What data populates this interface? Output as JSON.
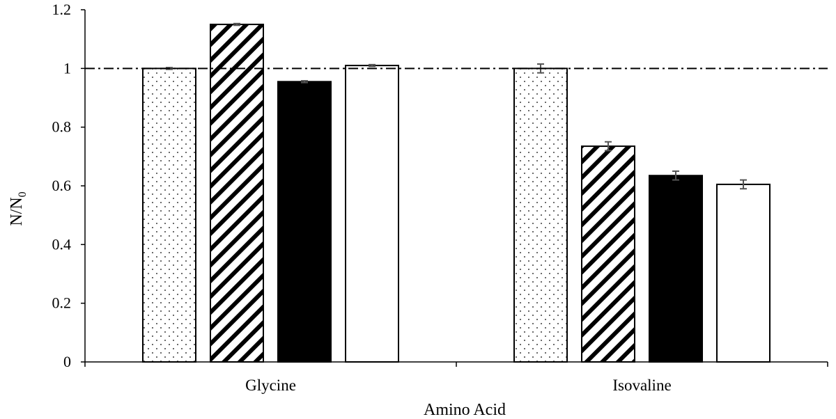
{
  "chart_data": {
    "type": "bar",
    "title": "",
    "xlabel": "Amino Acid",
    "ylabel": {
      "main": "N/N",
      "subscript": "0"
    },
    "ylim": [
      0,
      1.2
    ],
    "yticks": [
      "0",
      "0.2",
      "0.4",
      "0.6",
      "0.8",
      "1",
      "1.2"
    ],
    "categories": [
      "Glycine",
      "Isovaline"
    ],
    "reference_line": {
      "value": 1.0,
      "style": "dash-dot"
    },
    "grid": false,
    "legend": "none",
    "series": [
      {
        "pattern": "dots",
        "values": [
          1.0,
          1.0
        ],
        "errors": [
          0.003,
          0.015
        ]
      },
      {
        "pattern": "diagonal",
        "values": [
          1.15,
          0.735
        ],
        "errors": [
          0.003,
          0.015
        ]
      },
      {
        "pattern": "solid",
        "values": [
          0.955,
          0.635
        ],
        "errors": [
          0.003,
          0.015
        ]
      },
      {
        "pattern": "empty",
        "values": [
          1.01,
          0.605
        ],
        "errors": [
          0.003,
          0.015
        ]
      }
    ]
  },
  "colors": {
    "axis": "#000000",
    "bar_edge": "#000000",
    "solid_fill": "#000000",
    "empty_fill": "#ffffff",
    "error_bar": "#555555"
  }
}
